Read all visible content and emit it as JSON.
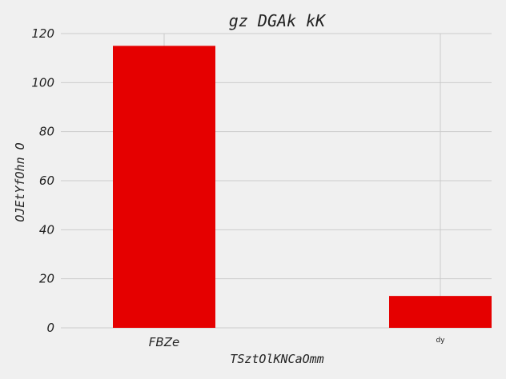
{
  "chart_data": {
    "type": "bar",
    "title": "gz DGAk kK",
    "xlabel": "TSztOlKNCaOmm",
    "ylabel": "OJEtYfOhn  O",
    "categories": [
      "FBZe",
      "dy"
    ],
    "values": [
      115,
      13
    ],
    "ylim": [
      0,
      120
    ],
    "yticks": [
      0,
      20,
      40,
      60,
      80,
      100,
      120
    ],
    "bar_color": "#e50000",
    "background": "#f0f0f0",
    "grid": true
  }
}
